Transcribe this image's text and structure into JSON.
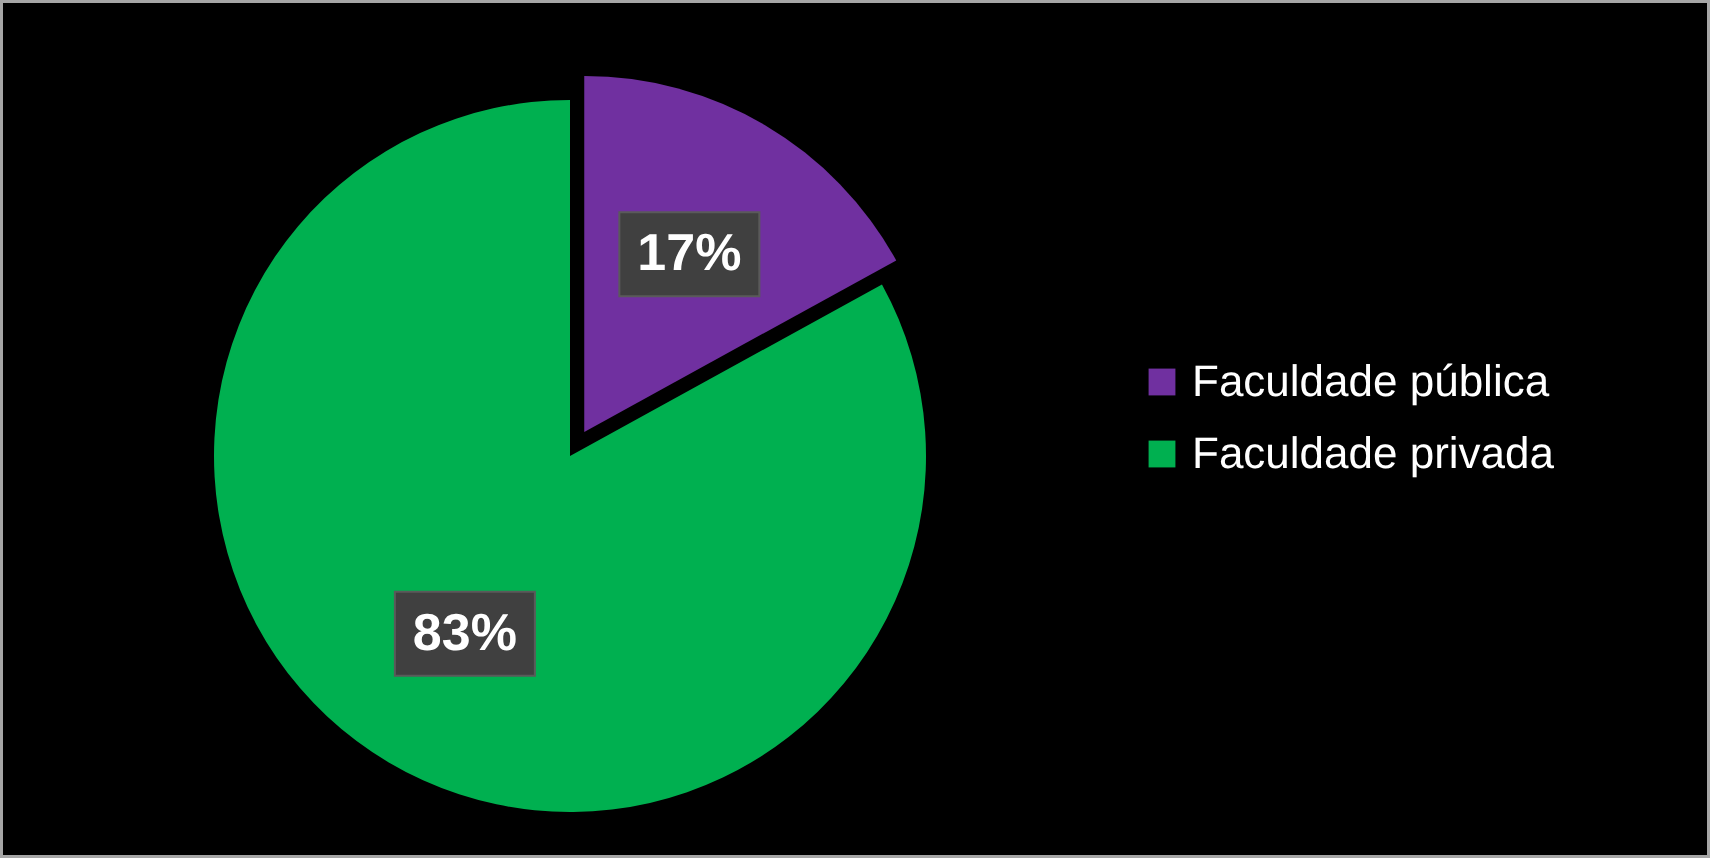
{
  "chart_data": {
    "type": "pie",
    "categories": [
      "Faculdade pública",
      "Faculdade privada"
    ],
    "values": [
      17,
      83
    ],
    "colors": [
      "#7030a0",
      "#00b050"
    ],
    "value_labels": [
      "17%",
      "83%"
    ],
    "legend": "right"
  }
}
